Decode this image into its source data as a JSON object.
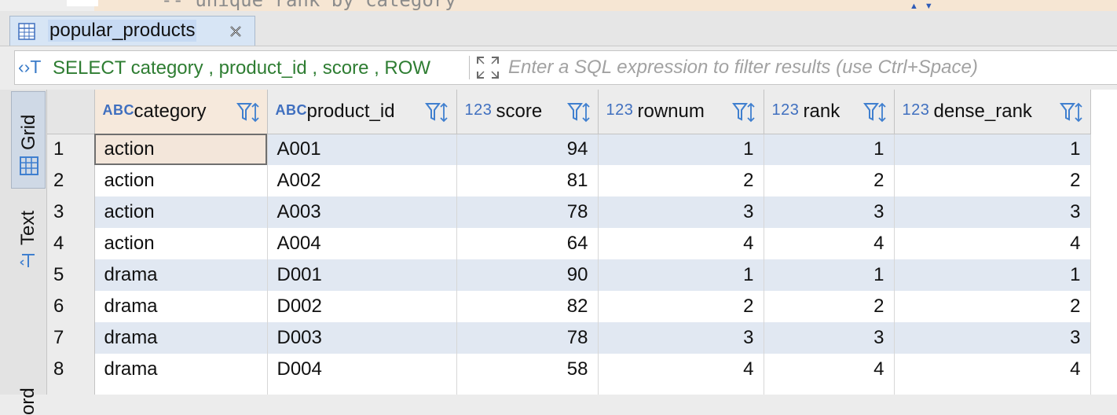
{
  "editor": {
    "code_line": "-- unique rank by category"
  },
  "tab": {
    "label": "popular_products",
    "icon": "table-icon",
    "close_icon": "close-icon"
  },
  "filter_bar": {
    "sql_preview": "SELECT category , product_id , score , ROW",
    "placeholder": "Enter a SQL expression to filter results (use Ctrl+Space)"
  },
  "side_panel": {
    "tabs": [
      {
        "label": "Grid",
        "icon": "grid-icon",
        "active": true
      },
      {
        "label": "Text",
        "icon": "text-icon",
        "active": false
      },
      {
        "label": "ord",
        "icon": "",
        "active": false
      }
    ]
  },
  "grid": {
    "columns": [
      {
        "name": "category",
        "type": "ABC"
      },
      {
        "name": "product_id",
        "type": "ABC"
      },
      {
        "name": "score",
        "type": "123"
      },
      {
        "name": "rownum",
        "type": "123"
      },
      {
        "name": "rank",
        "type": "123"
      },
      {
        "name": "dense_rank",
        "type": "123"
      }
    ],
    "rows": [
      {
        "n": "1",
        "category": "action",
        "product_id": "A001",
        "score": "94",
        "rownum": "1",
        "rank": "1",
        "dense_rank": "1"
      },
      {
        "n": "2",
        "category": "action",
        "product_id": "A002",
        "score": "81",
        "rownum": "2",
        "rank": "2",
        "dense_rank": "2"
      },
      {
        "n": "3",
        "category": "action",
        "product_id": "A003",
        "score": "78",
        "rownum": "3",
        "rank": "3",
        "dense_rank": "3"
      },
      {
        "n": "4",
        "category": "action",
        "product_id": "A004",
        "score": "64",
        "rownum": "4",
        "rank": "4",
        "dense_rank": "4"
      },
      {
        "n": "5",
        "category": "drama",
        "product_id": "D001",
        "score": "90",
        "rownum": "1",
        "rank": "1",
        "dense_rank": "1"
      },
      {
        "n": "6",
        "category": "drama",
        "product_id": "D002",
        "score": "82",
        "rownum": "2",
        "rank": "2",
        "dense_rank": "2"
      },
      {
        "n": "7",
        "category": "drama",
        "product_id": "D003",
        "score": "78",
        "rownum": "3",
        "rank": "3",
        "dense_rank": "3"
      },
      {
        "n": "8",
        "category": "drama",
        "product_id": "D004",
        "score": "58",
        "rownum": "4",
        "rank": "4",
        "dense_rank": "4"
      }
    ]
  },
  "colors": {
    "accent": "#3f6fbf",
    "sql_text": "#2e7d32",
    "odd_row": "#e1e8f2",
    "selected_cell": "#f3e6da"
  }
}
